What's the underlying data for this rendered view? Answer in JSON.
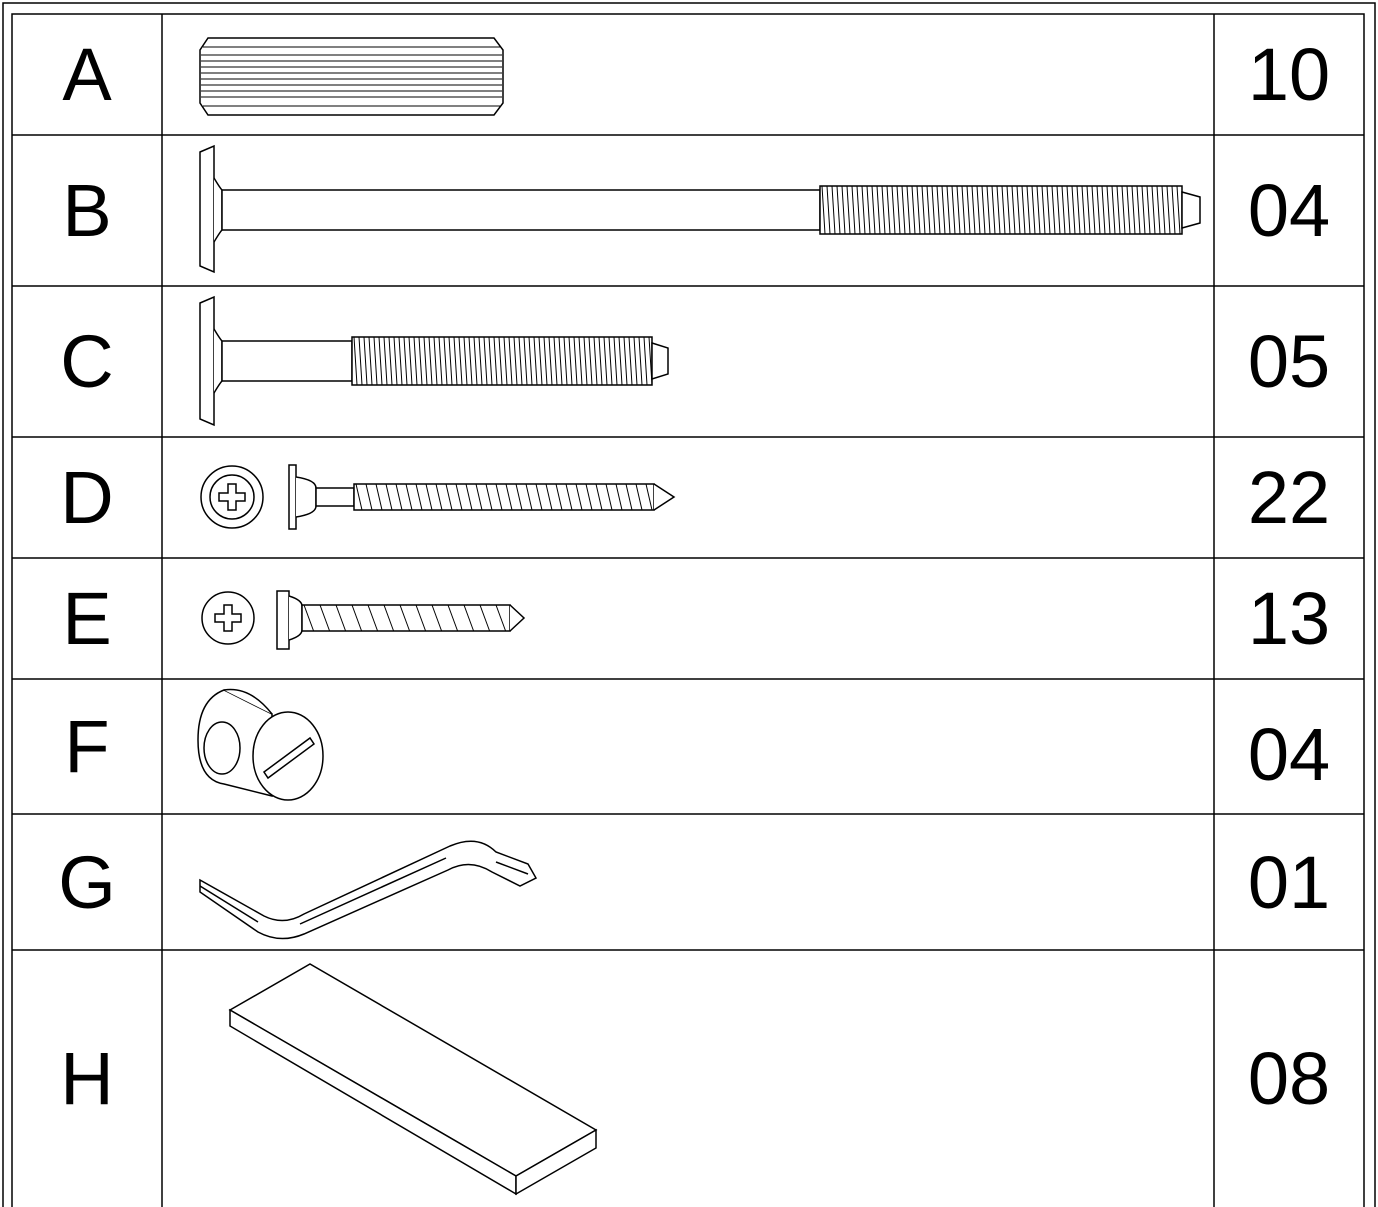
{
  "rows": [
    {
      "letter": "A",
      "part": "dowel-pin",
      "quantity": "10"
    },
    {
      "letter": "B",
      "part": "long-connector-bolt",
      "quantity": "04"
    },
    {
      "letter": "C",
      "part": "short-connector-bolt",
      "quantity": "05"
    },
    {
      "letter": "D",
      "part": "long-wood-screw",
      "quantity": "22"
    },
    {
      "letter": "E",
      "part": "short-wood-screw",
      "quantity": "13"
    },
    {
      "letter": "F",
      "part": "barrel-nut",
      "quantity": "04"
    },
    {
      "letter": "G",
      "part": "allen-key",
      "quantity": "01"
    },
    {
      "letter": "H",
      "part": "wood-block",
      "quantity": "08"
    }
  ],
  "colors": {
    "line": "#000000",
    "background": "#ffffff"
  }
}
